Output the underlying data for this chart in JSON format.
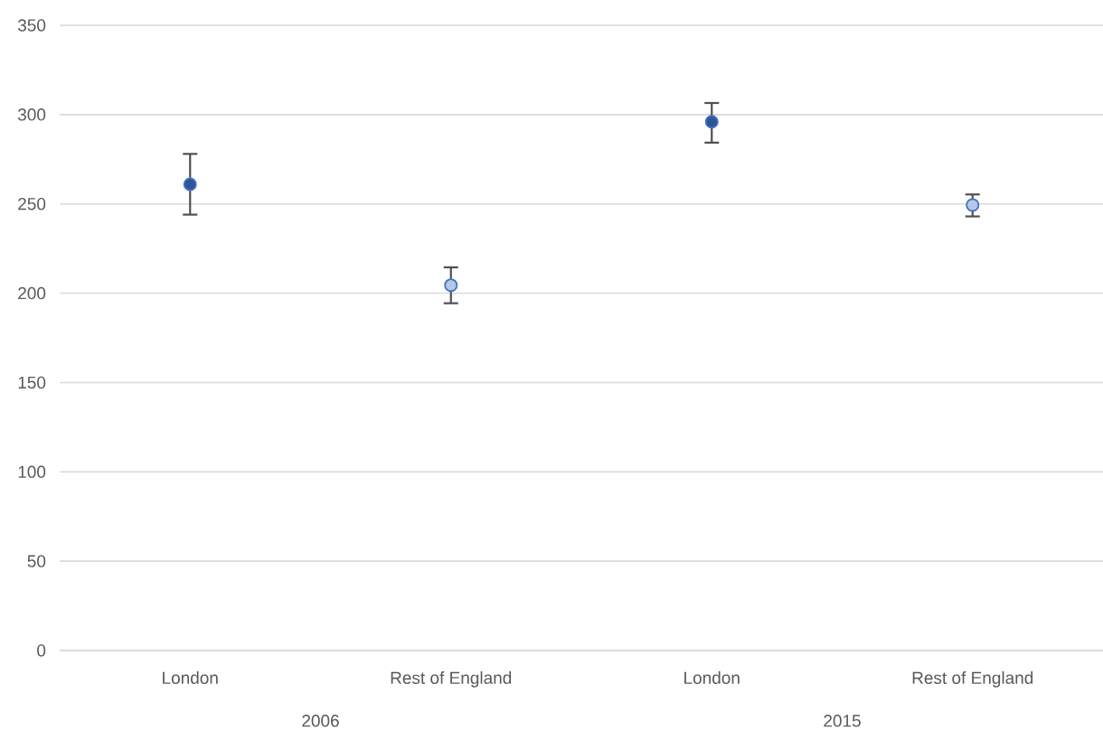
{
  "chart_data": {
    "type": "scatter",
    "categories": [
      "London",
      "Rest of England",
      "London",
      "Rest of England"
    ],
    "values": [
      261,
      204.5,
      296,
      249.4
    ],
    "colors": [
      "#2f5597",
      "#b4c7e7",
      "#2f5597",
      "#b4c7e7"
    ],
    "errors": [
      [
        244,
        278
      ],
      [
        194.4,
        214.5
      ],
      [
        284.3,
        306.5
      ],
      [
        243,
        255.3
      ]
    ],
    "annotations": [
      "2006",
      "2015"
    ],
    "ylim": [
      0,
      350
    ],
    "yticks": [
      0,
      50,
      100,
      150,
      200,
      250,
      300,
      350
    ],
    "grid": "y",
    "marker": "circle"
  }
}
